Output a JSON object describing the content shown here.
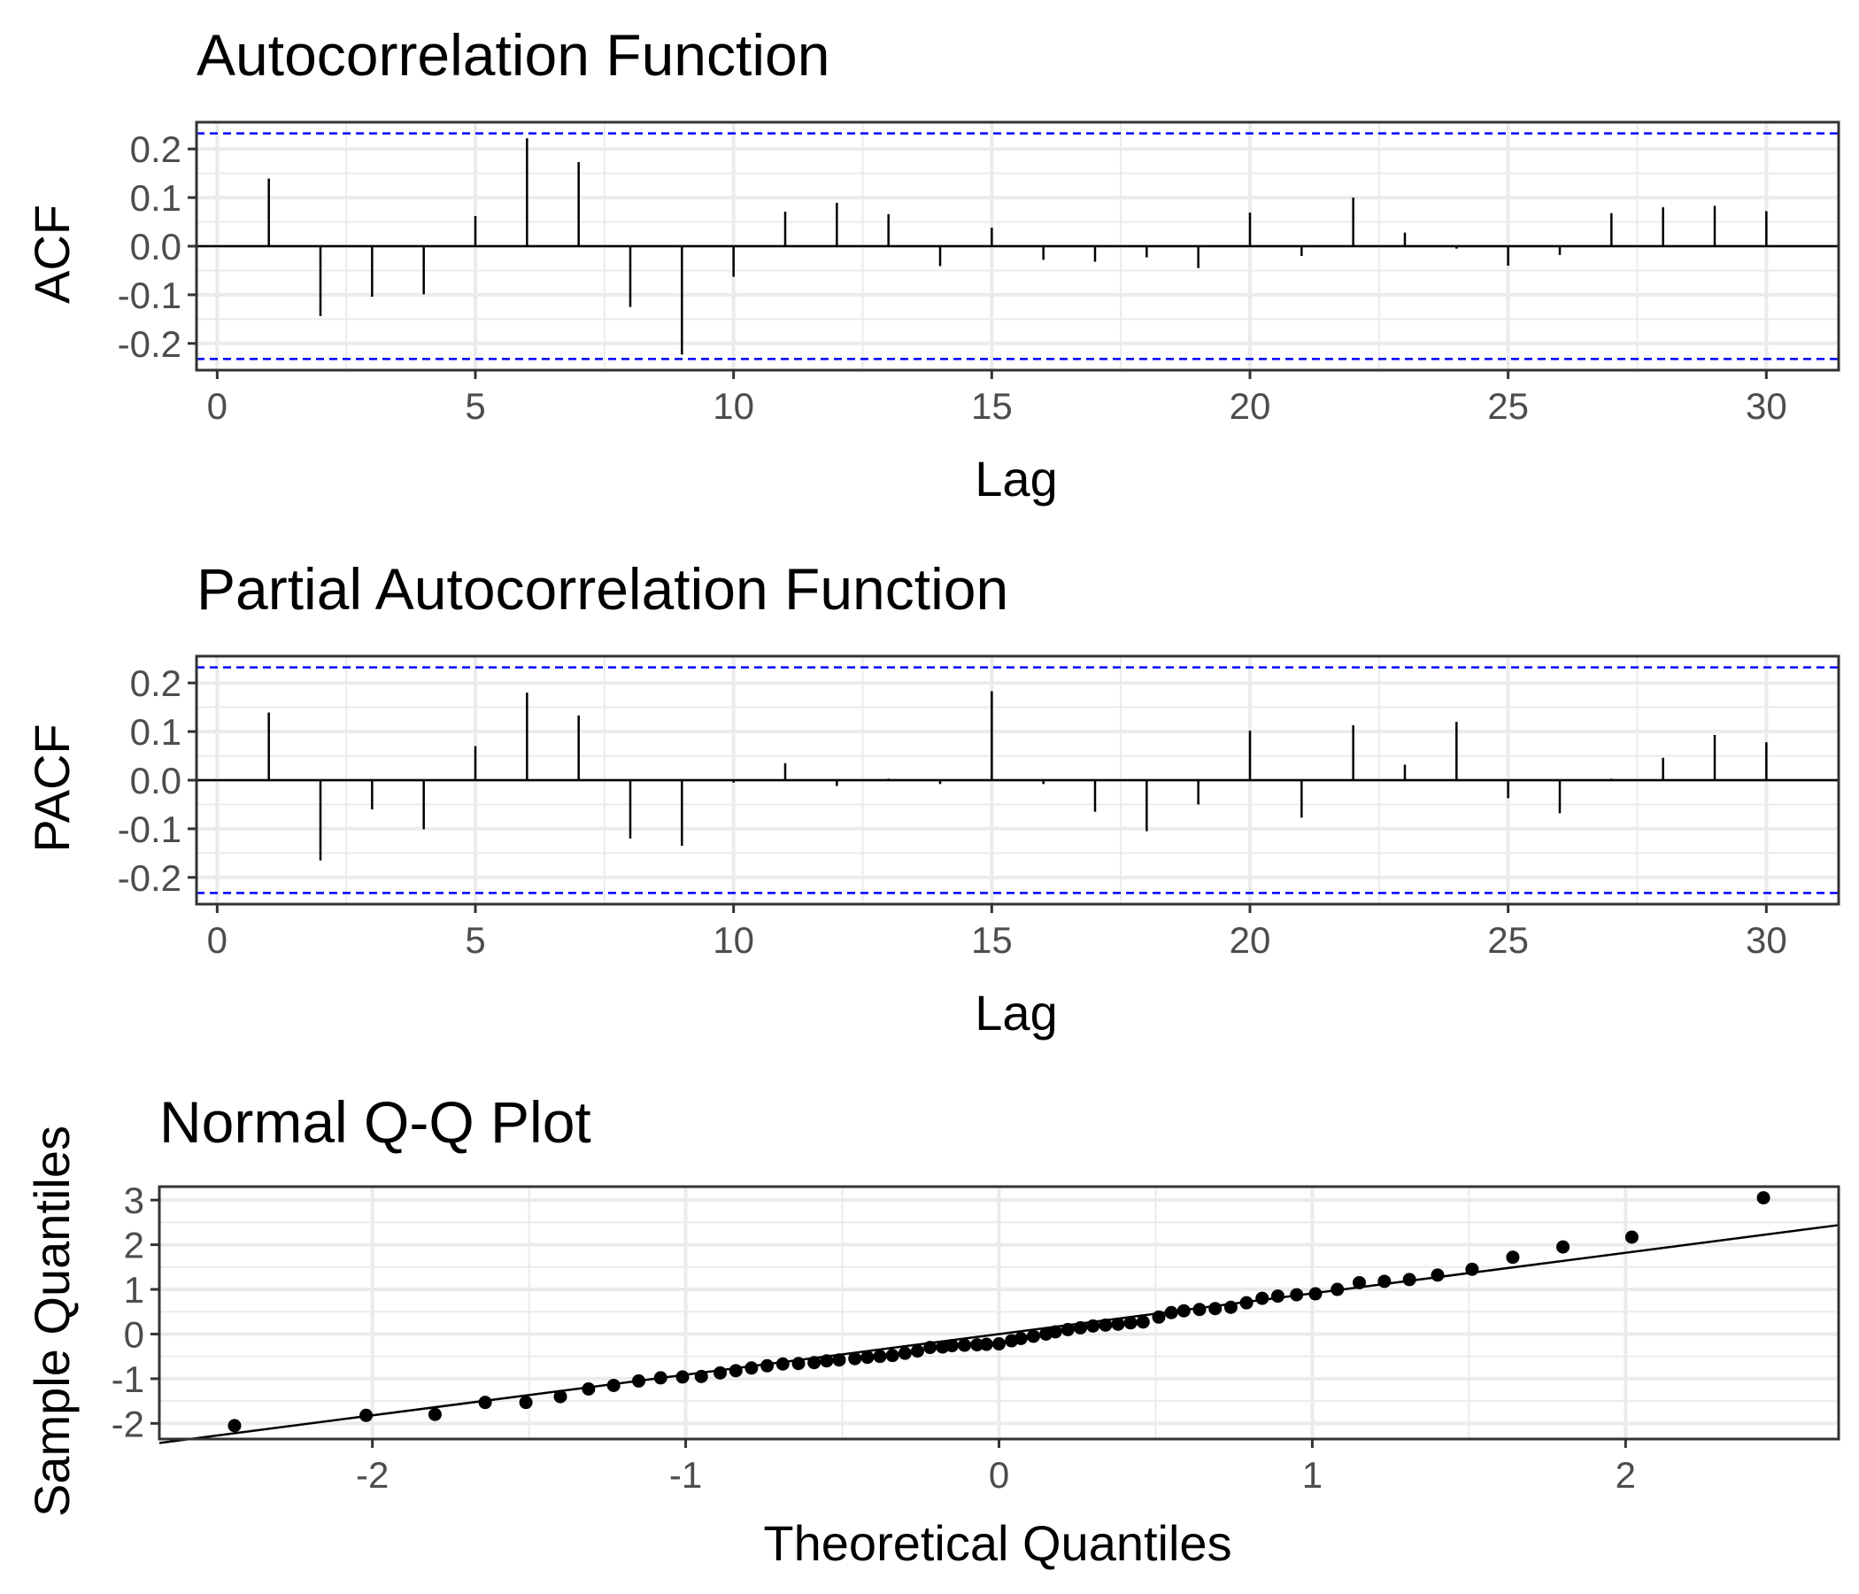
{
  "colors": {
    "bar": "#000000",
    "confidence_line": "#0000ff",
    "grid": "#ebebeb",
    "panel_border": "#333333",
    "point": "#000000",
    "reference_line": "#000000",
    "tick_text": "#4d4d4d"
  },
  "chart_data": [
    {
      "type": "bar",
      "title": "Autocorrelation Function",
      "xlabel": "Lag",
      "ylabel": "ACF",
      "grid": true,
      "xlim": [
        -0.4,
        31.4
      ],
      "ylim": [
        -0.255,
        0.255
      ],
      "xticks": [
        0,
        5,
        10,
        15,
        20,
        25,
        30
      ],
      "yticks": [
        -0.2,
        -0.1,
        0.0,
        0.1,
        0.2
      ],
      "ytick_labels": [
        "-0.2",
        "-0.1",
        "0.0",
        "0.1",
        "0.2"
      ],
      "confidence_bounds": [
        -0.232,
        0.232
      ],
      "x": [
        1,
        2,
        3,
        4,
        5,
        6,
        7,
        8,
        9,
        10,
        11,
        12,
        13,
        14,
        15,
        16,
        17,
        18,
        19,
        20,
        21,
        22,
        23,
        24,
        25,
        26,
        27,
        28,
        29,
        30
      ],
      "values": [
        0.139,
        -0.144,
        -0.104,
        -0.099,
        0.062,
        0.222,
        0.173,
        -0.125,
        -0.223,
        -0.063,
        0.071,
        0.089,
        0.066,
        -0.041,
        0.038,
        -0.028,
        -0.032,
        -0.023,
        -0.045,
        0.069,
        -0.02,
        0.1,
        0.028,
        -0.005,
        -0.04,
        -0.018,
        0.068,
        0.08,
        0.083,
        0.072
      ]
    },
    {
      "type": "bar",
      "title": "Partial Autocorrelation Function",
      "xlabel": "Lag",
      "ylabel": "PACF",
      "grid": true,
      "xlim": [
        -0.4,
        31.4
      ],
      "ylim": [
        -0.255,
        0.255
      ],
      "xticks": [
        0,
        5,
        10,
        15,
        20,
        25,
        30
      ],
      "yticks": [
        -0.2,
        -0.1,
        0.0,
        0.1,
        0.2
      ],
      "ytick_labels": [
        "-0.2",
        "-0.1",
        "0.0",
        "0.1",
        "0.2"
      ],
      "confidence_bounds": [
        -0.232,
        0.232
      ],
      "x": [
        1,
        2,
        3,
        4,
        5,
        6,
        7,
        8,
        9,
        10,
        11,
        12,
        13,
        14,
        15,
        16,
        17,
        18,
        19,
        20,
        21,
        22,
        23,
        24,
        25,
        26,
        27,
        28,
        29,
        30
      ],
      "values": [
        0.139,
        -0.165,
        -0.06,
        -0.101,
        0.07,
        0.18,
        0.133,
        -0.12,
        -0.135,
        -0.005,
        0.035,
        -0.012,
        0.003,
        -0.008,
        0.183,
        -0.008,
        -0.065,
        -0.105,
        -0.05,
        0.102,
        -0.077,
        0.113,
        0.032,
        0.12,
        -0.037,
        -0.068,
        0.003,
        0.046,
        0.093,
        0.078
      ]
    },
    {
      "type": "scatter",
      "title": "Normal Q-Q Plot",
      "xlabel": "Theoretical Quantiles",
      "ylabel": "Sample Quantiles",
      "grid": true,
      "xlim": [
        -2.68,
        2.68
      ],
      "ylim": [
        -2.35,
        3.3
      ],
      "xticks": [
        -2,
        -1,
        0,
        1,
        2
      ],
      "yticks": [
        -2,
        -1,
        0,
        1,
        2,
        3
      ],
      "ytick_labels": [
        "-2",
        "-1",
        "0",
        "1",
        "2",
        "3"
      ],
      "reference_line": {
        "slope": 0.91,
        "intercept": 0.0
      },
      "points": [
        [
          -2.44,
          -2.05
        ],
        [
          -2.02,
          -1.82
        ],
        [
          -1.8,
          -1.8
        ],
        [
          -1.64,
          -1.53
        ],
        [
          -1.51,
          -1.53
        ],
        [
          -1.4,
          -1.4
        ],
        [
          -1.31,
          -1.23
        ],
        [
          -1.23,
          -1.15
        ],
        [
          -1.15,
          -1.05
        ],
        [
          -1.08,
          -0.98
        ],
        [
          -1.01,
          -0.96
        ],
        [
          -0.95,
          -0.95
        ],
        [
          -0.89,
          -0.87
        ],
        [
          -0.84,
          -0.82
        ],
        [
          -0.79,
          -0.76
        ],
        [
          -0.74,
          -0.71
        ],
        [
          -0.69,
          -0.67
        ],
        [
          -0.64,
          -0.66
        ],
        [
          -0.59,
          -0.64
        ],
        [
          -0.55,
          -0.6
        ],
        [
          -0.51,
          -0.58
        ],
        [
          -0.46,
          -0.55
        ],
        [
          -0.42,
          -0.52
        ],
        [
          -0.38,
          -0.5
        ],
        [
          -0.34,
          -0.48
        ],
        [
          -0.3,
          -0.43
        ],
        [
          -0.26,
          -0.38
        ],
        [
          -0.22,
          -0.3
        ],
        [
          -0.18,
          -0.29
        ],
        [
          -0.15,
          -0.26
        ],
        [
          -0.11,
          -0.25
        ],
        [
          -0.07,
          -0.24
        ],
        [
          -0.04,
          -0.23
        ],
        [
          0.0,
          -0.22
        ],
        [
          0.04,
          -0.15
        ],
        [
          0.07,
          -0.1
        ],
        [
          0.11,
          -0.05
        ],
        [
          0.15,
          0.0
        ],
        [
          0.18,
          0.05
        ],
        [
          0.22,
          0.1
        ],
        [
          0.26,
          0.14
        ],
        [
          0.3,
          0.18
        ],
        [
          0.34,
          0.2
        ],
        [
          0.38,
          0.22
        ],
        [
          0.42,
          0.25
        ],
        [
          0.46,
          0.27
        ],
        [
          0.51,
          0.38
        ],
        [
          0.55,
          0.48
        ],
        [
          0.59,
          0.52
        ],
        [
          0.64,
          0.55
        ],
        [
          0.69,
          0.57
        ],
        [
          0.74,
          0.6
        ],
        [
          0.79,
          0.7
        ],
        [
          0.84,
          0.8
        ],
        [
          0.89,
          0.85
        ],
        [
          0.95,
          0.88
        ],
        [
          1.01,
          0.9
        ],
        [
          1.08,
          1.0
        ],
        [
          1.15,
          1.15
        ],
        [
          1.23,
          1.18
        ],
        [
          1.31,
          1.22
        ],
        [
          1.4,
          1.32
        ],
        [
          1.51,
          1.45
        ],
        [
          1.64,
          1.72
        ],
        [
          1.8,
          1.95
        ],
        [
          2.02,
          2.17
        ],
        [
          2.44,
          3.05
        ]
      ]
    }
  ]
}
